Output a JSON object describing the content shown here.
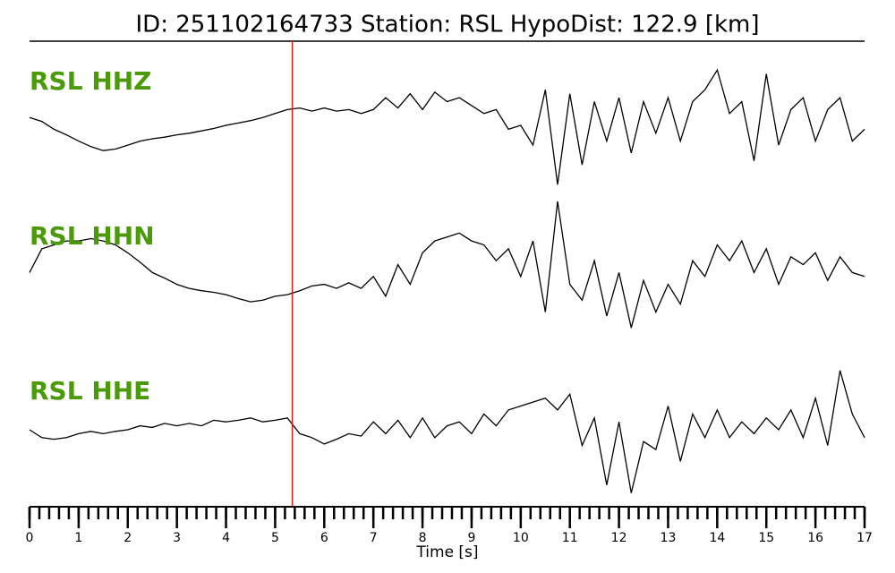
{
  "chart_data": {
    "type": "waveform",
    "title": "ID: 251102164733   Station: RSL   HypoDist:   122.9 [km]",
    "xlabel": "Time [s]",
    "xlim": [
      0,
      17
    ],
    "xticks": [
      0,
      1,
      2,
      3,
      4,
      5,
      6,
      7,
      8,
      9,
      10,
      11,
      12,
      13,
      14,
      15,
      16,
      17
    ],
    "xminor_step": 0.2,
    "ylim": [
      -85,
      85
    ],
    "pick": 5.35,
    "pick_color": "#e31a1c",
    "label_color": "#4a9a0a",
    "x": [
      0,
      0.25,
      0.5,
      0.75,
      1,
      1.25,
      1.5,
      1.75,
      2,
      2.25,
      2.5,
      2.75,
      3,
      3.25,
      3.5,
      3.75,
      4,
      4.25,
      4.5,
      4.75,
      5,
      5.25,
      5.5,
      5.75,
      6,
      6.25,
      6.5,
      6.75,
      7,
      7.25,
      7.5,
      7.75,
      8,
      8.25,
      8.5,
      8.75,
      9,
      9.25,
      9.5,
      9.75,
      10,
      10.25,
      10.5,
      10.75,
      11,
      11.25,
      11.5,
      11.75,
      12,
      12.25,
      12.5,
      12.75,
      13,
      13.25,
      13.5,
      13.75,
      14,
      14.25,
      14.5,
      14.75,
      15,
      15.25,
      15.5,
      15.75,
      16,
      16.25,
      16.5,
      16.75,
      17
    ],
    "series": [
      {
        "name": "RSL HHZ",
        "color": "#000000",
        "values": [
          10,
          5,
          -5,
          -12,
          -20,
          -27,
          -32,
          -30,
          -25,
          -20,
          -17,
          -15,
          -12,
          -10,
          -7,
          -4,
          0,
          3,
          6,
          10,
          15,
          20,
          22,
          18,
          22,
          18,
          20,
          15,
          20,
          35,
          22,
          40,
          20,
          42,
          30,
          35,
          25,
          15,
          20,
          -5,
          0,
          -25,
          45,
          -75,
          40,
          -50,
          30,
          -20,
          35,
          -35,
          30,
          -10,
          35,
          -20,
          30,
          45,
          70,
          15,
          30,
          -45,
          65,
          -25,
          20,
          35,
          -20,
          20,
          35,
          -20,
          -5
        ]
      },
      {
        "name": "RSL HHN",
        "color": "#000000",
        "values": [
          -5,
          25,
          30,
          35,
          35,
          38,
          35,
          30,
          20,
          8,
          -5,
          -12,
          -20,
          -25,
          -28,
          -30,
          -33,
          -38,
          -42,
          -40,
          -35,
          -33,
          -28,
          -22,
          -20,
          -25,
          -18,
          -25,
          -10,
          -35,
          5,
          -20,
          20,
          35,
          40,
          45,
          35,
          30,
          10,
          25,
          -10,
          35,
          -55,
          85,
          -20,
          -40,
          10,
          -60,
          -5,
          -75,
          -15,
          -55,
          -20,
          -45,
          10,
          -10,
          30,
          10,
          35,
          -5,
          25,
          -20,
          15,
          5,
          20,
          -15,
          15,
          -5,
          -10
        ]
      },
      {
        "name": "RSL HHE",
        "color": "#000000",
        "values": [
          0,
          -10,
          -12,
          -10,
          -5,
          -2,
          -5,
          -2,
          0,
          5,
          3,
          8,
          5,
          8,
          5,
          12,
          10,
          12,
          15,
          10,
          12,
          15,
          -5,
          -10,
          -18,
          -12,
          -5,
          -8,
          10,
          -5,
          12,
          -10,
          15,
          -10,
          5,
          10,
          -5,
          20,
          5,
          25,
          30,
          35,
          40,
          25,
          45,
          -20,
          15,
          -70,
          10,
          -80,
          -15,
          -25,
          30,
          -40,
          20,
          -10,
          25,
          -10,
          10,
          -5,
          15,
          0,
          25,
          -10,
          40,
          -20,
          75,
          20,
          -10
        ]
      }
    ]
  }
}
